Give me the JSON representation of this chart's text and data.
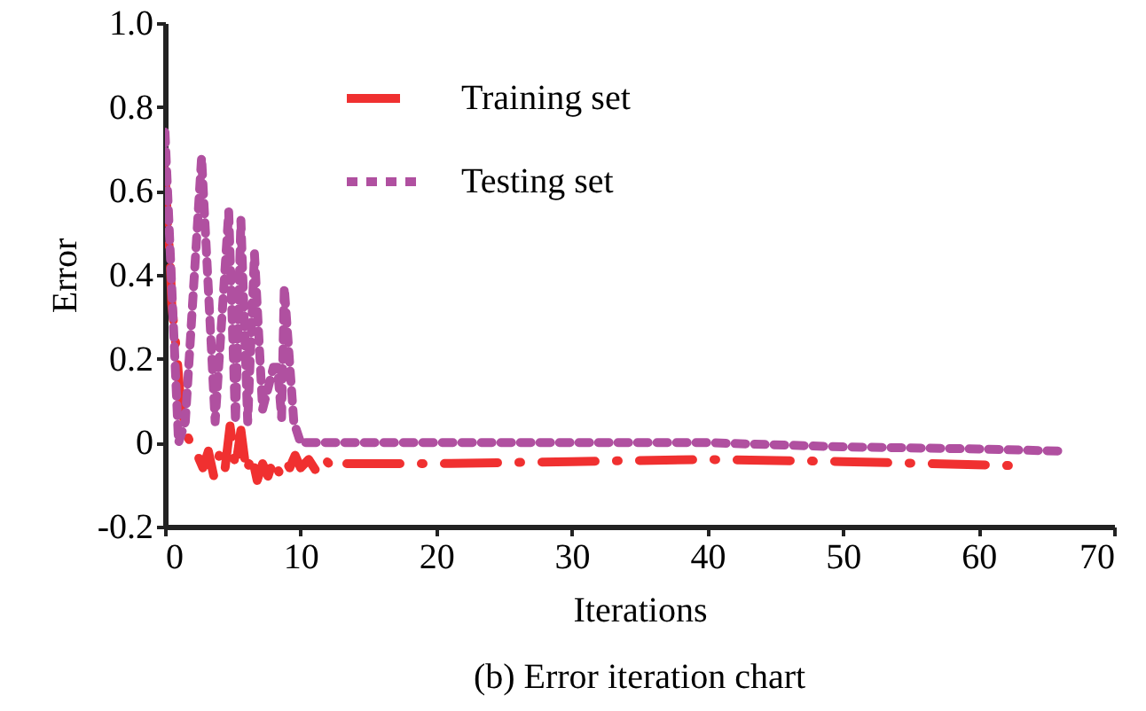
{
  "chart_data": {
    "type": "line",
    "xlabel": "Iterations",
    "ylabel": "Error",
    "annotations": [
      "(b) Error iteration chart"
    ],
    "xlim": [
      0,
      70
    ],
    "xticks": [
      0,
      10,
      20,
      30,
      40,
      50,
      60,
      70
    ],
    "ylim": [
      -0.2,
      1.0
    ],
    "yticks": [
      {
        "value": -0.2,
        "label": "-0.2"
      },
      0,
      {
        "value": 0.2,
        "label": "0.2"
      },
      {
        "value": 0.4,
        "label": "0.4"
      },
      {
        "value": 0.6,
        "label": "0.6"
      },
      {
        "value": 0.8,
        "label": "0.8"
      },
      {
        "value": 1.0,
        "label": "1.0"
      }
    ],
    "grid": false,
    "legend": "top",
    "marker": "none",
    "series": [
      {
        "name": "Training set",
        "color": "#f03030",
        "line_style": "dashed",
        "x": [
          0,
          0.2,
          0.4,
          0.5,
          0.9,
          1.2,
          1.6,
          2.0,
          2.4,
          2.8,
          3.2,
          3.6,
          4.0,
          4.4,
          4.8,
          5.2,
          5.6,
          6.0,
          6.4,
          6.8,
          7.2,
          7.6,
          8.0,
          8.4,
          8.8,
          9.2,
          9.6,
          10.0,
          10.6,
          11.2,
          11.8,
          12.4,
          13.0,
          20,
          30,
          40,
          50,
          63
        ],
        "values": [
          0.65,
          0.52,
          0.42,
          0.33,
          0.2,
          0.08,
          0.02,
          -0.01,
          -0.03,
          -0.06,
          -0.02,
          -0.08,
          -0.03,
          -0.07,
          0.04,
          -0.06,
          0.03,
          -0.07,
          -0.03,
          -0.09,
          -0.05,
          -0.08,
          -0.04,
          -0.07,
          -0.04,
          -0.06,
          -0.03,
          -0.06,
          -0.04,
          -0.07,
          -0.04,
          -0.06,
          -0.05,
          -0.05,
          -0.045,
          -0.04,
          -0.045,
          -0.055
        ]
      },
      {
        "name": "Testing set",
        "color": "#b050a0",
        "line_style": "dotted",
        "x": [
          0,
          1.0,
          1.5,
          2.7,
          3.7,
          4.7,
          5.2,
          5.6,
          6.1,
          6.6,
          7.2,
          8.0,
          8.3,
          8.6,
          8.8,
          9.5,
          10,
          20,
          30,
          40,
          50,
          60,
          66
        ],
        "values": [
          0.74,
          0.0,
          0.05,
          0.68,
          0.05,
          0.55,
          0.05,
          0.53,
          0.05,
          0.45,
          0.08,
          0.18,
          0.18,
          0.06,
          0.37,
          0.05,
          0.0,
          0.0,
          0.0,
          0.0,
          -0.01,
          -0.015,
          -0.02
        ]
      }
    ]
  }
}
